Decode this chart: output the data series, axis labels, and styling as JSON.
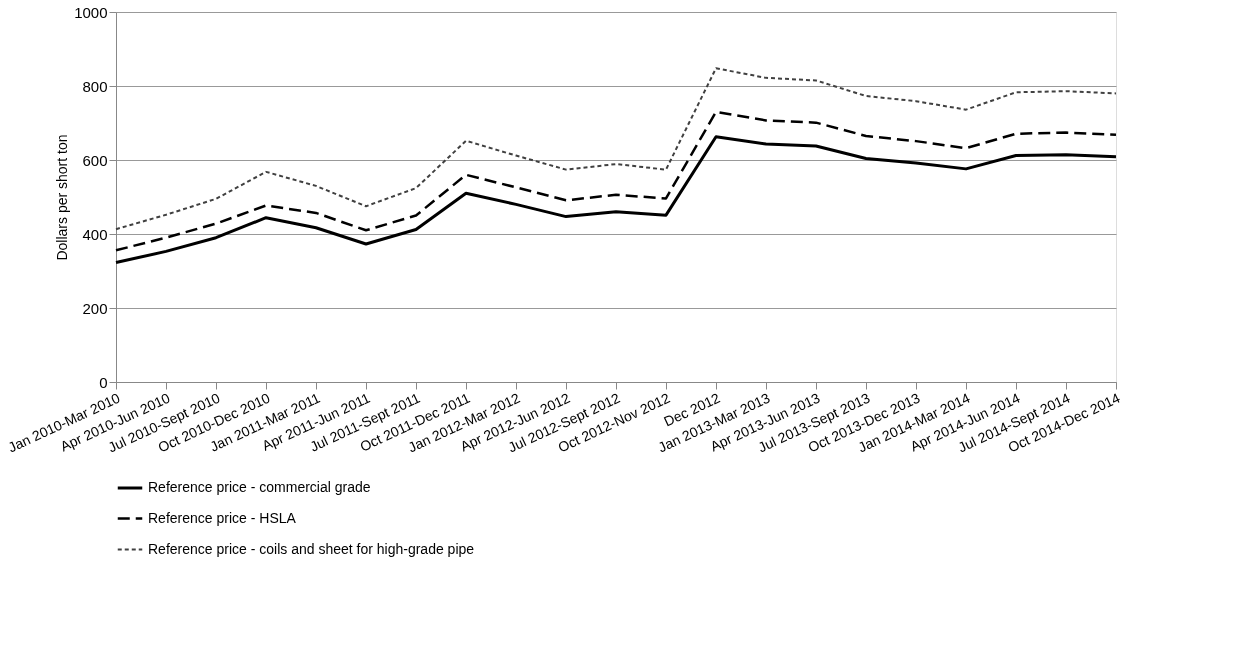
{
  "chart_data": {
    "type": "line",
    "ylabel": "Dollars per short ton",
    "categories": [
      "Jan 2010-Mar 2010",
      "Apr 2010-Jun 2010",
      "Jul 2010-Sept 2010",
      "Oct 2010-Dec 2010",
      "Jan 2011-Mar 2011",
      "Apr 2011-Jun 2011",
      "Jul 2011-Sept 2011",
      "Oct 2011-Dec 2011",
      "Jan 2012-Mar 2012",
      "Apr 2012-Jun 2012",
      "Jul 2012-Sept 2012",
      "Oct 2012-Nov 2012",
      "Dec 2012",
      "Jan 2013-Mar 2013",
      "Apr 2013-Jun 2013",
      "Jul 2013-Sept 2013",
      "Oct 2013-Dec 2013",
      "Jan 2014-Mar 2014",
      "Apr 2014-Jun 2014",
      "Jul 2014-Sept 2014",
      "Oct 2014-Dec 2014"
    ],
    "series": [
      {
        "name": "Reference price - commercial grade",
        "color": "#000000",
        "line_style": "solid",
        "values": [
          323,
          353,
          390,
          444,
          417,
          373,
          412,
          510,
          480,
          447,
          460,
          451,
          663,
          643,
          638,
          604,
          592,
          576,
          612,
          614,
          609
        ]
      },
      {
        "name": "Reference price - HSLA",
        "color": "#000000",
        "line_style": "dashed",
        "values": [
          356,
          390,
          428,
          477,
          457,
          410,
          450,
          560,
          526,
          491,
          506,
          496,
          730,
          707,
          701,
          665,
          651,
          632,
          671,
          674,
          668
        ]
      },
      {
        "name": "Reference price - coils and sheet for high-grade pipe",
        "color": "#404040",
        "line_style": "dotted",
        "values": [
          413,
          452,
          495,
          568,
          530,
          475,
          524,
          652,
          612,
          574,
          589,
          574,
          848,
          822,
          815,
          773,
          759,
          736,
          783,
          786,
          780
        ]
      }
    ],
    "ylim": [
      0,
      1000
    ],
    "yticks": [
      0,
      200,
      400,
      600,
      800,
      1000
    ],
    "grid": "y",
    "legend": "bottom",
    "marker": "none"
  }
}
